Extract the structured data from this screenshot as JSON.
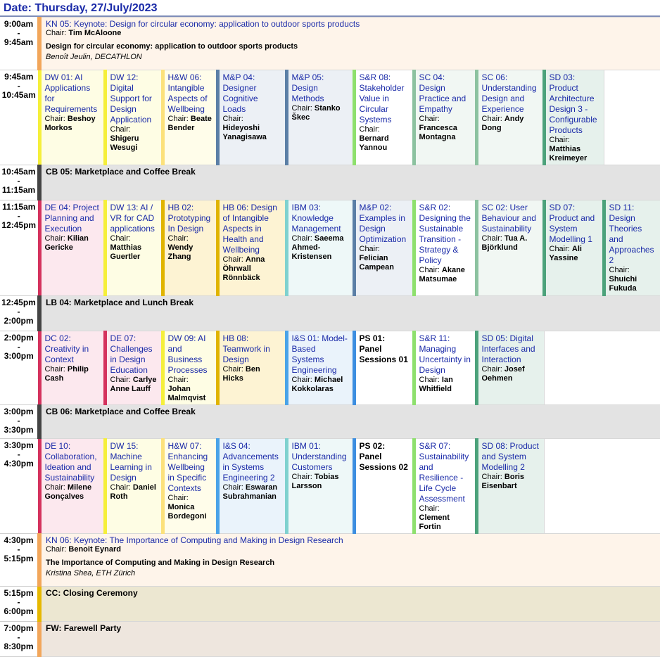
{
  "date": "Date: Thursday, 27/July/2023",
  "chair_prefix": "Chair:",
  "colors": {
    "yellow_border": "#f5ef3a",
    "pink_bg": "#fce8ee",
    "pink_border": "#d4325d",
    "keynote_bg": "#fef4ea",
    "keynote_border": "#f2a65a",
    "break_bg": "#e3e3e3",
    "break_border": "#444444",
    "closing_bg": "#ece7d1",
    "closing_border": "#e6b800",
    "farewell_bg": "#eee6de",
    "farewell_border": "#f2a65a"
  },
  "kn05": {
    "title": "KN 05: Keynote: Design for circular economy: application to outdoor sports products",
    "chair": "Tim McAloone",
    "talk": "Design for circular economy: application to outdoor sports products",
    "speaker": "Benoît Jeulin, DECATHLON",
    "time_start": "9:00am",
    "time_end": "9:45am"
  },
  "slot1": {
    "time_start": "9:45am",
    "time_end": "10:45am",
    "sessions": [
      {
        "title": "DW 01: AI Applications for Requirements",
        "chair": "Beshoy Morkos"
      },
      {
        "title": "DW 12: Digital Support for Design Application",
        "chair": "Shigeru Wesugi"
      },
      {
        "title": "H&W 06: Intangible Aspects of Wellbeing",
        "chair": "Beate Bender"
      },
      {
        "title": "M&P 04: Designer Cognitive Loads",
        "chair": "Hideyoshi Yanagisawa"
      },
      {
        "title": "M&P 05: Design Methods",
        "chair": "Stanko Škec"
      },
      {
        "title": "S&R 08: Stakeholder Value in Circular Systems",
        "chair": "Bernard Yannou"
      },
      {
        "title": "SC 04: Design Practice and Empathy",
        "chair": "Francesca Montagna"
      },
      {
        "title": "SC 06: Understanding Design and Experience",
        "chair": "Andy Dong"
      },
      {
        "title": "SD 03: Product Architecture Design 3 - Configurable Products",
        "chair": "Matthias Kreimeyer"
      }
    ]
  },
  "cb05": {
    "title": "CB 05: Marketplace and Coffee Break",
    "time_start": "10:45am",
    "time_end": "11:15am"
  },
  "slot2": {
    "time_start": "11:15am",
    "time_end": "12:45pm",
    "sessions": [
      {
        "title": "DE 04: Project Planning and Execution",
        "chair": "Kilian Gericke"
      },
      {
        "title": "DW 13: AI / VR for CAD applications",
        "chair": "Matthias Guertler"
      },
      {
        "title": "HB 02: Prototyping In Design",
        "chair": "Wendy Zhang"
      },
      {
        "title": "HB 06: Design of Intangible Aspects in Health and Wellbeing",
        "chair": "Anna Öhrwall Rönnbäck"
      },
      {
        "title": "IBM 03: Knowledge Management",
        "chair": "Saeema Ahmed-Kristensen"
      },
      {
        "title": "M&P 02: Examples in Design Optimization",
        "chair": "Felician Campean"
      },
      {
        "title": "S&R 02: Designing the Sustainable Transition - Strategy & Policy",
        "chair": "Akane Matsumae"
      },
      {
        "title": "SC 02: User Behaviour and Sustainability",
        "chair": "Tua A. Björklund"
      },
      {
        "title": "SD 07: Product and System Modelling 1",
        "chair": "Ali Yassine"
      },
      {
        "title": "SD 11: Design Theories and Approaches 2",
        "chair": "Shuichi Fukuda"
      }
    ]
  },
  "lb04": {
    "title": "LB 04: Marketplace and Lunch Break",
    "time_start": "12:45pm",
    "time_end": "2:00pm"
  },
  "slot3": {
    "time_start": "2:00pm",
    "time_end": "3:00pm",
    "sessions": [
      {
        "title": "DC 02: Creativity in Context",
        "chair": "Philip Cash"
      },
      {
        "title": "DE 07: Challenges in Design Education",
        "chair": "Carlye Anne Lauff"
      },
      {
        "title": "DW 09: AI and Business Processes",
        "chair": "Johan Malmqvist"
      },
      {
        "title": "HB 08: Teamwork in Design",
        "chair": "Ben Hicks"
      },
      {
        "title": "I&S 01: Model-Based Systems Engineering",
        "chair": "Michael Kokkolaras"
      },
      {
        "title": "PS 01: Panel Sessions 01",
        "chair": ""
      },
      {
        "title": "S&R 11: Managing Uncertainty in Design",
        "chair": "Ian Whitfield"
      },
      {
        "title": "SD 05: Digital Interfaces and Interaction",
        "chair": "Josef Oehmen"
      }
    ]
  },
  "cb06": {
    "title": "CB 06: Marketplace and Coffee Break",
    "time_start": "3:00pm",
    "time_end": "3:30pm"
  },
  "slot4": {
    "time_start": "3:30pm",
    "time_end": "4:30pm",
    "sessions": [
      {
        "title": "DE 10: Collaboration, Ideation and Sustainability",
        "chair": "Milene Gonçalves"
      },
      {
        "title": "DW 15: Machine Learning in Design",
        "chair": "Daniel Roth"
      },
      {
        "title": "H&W 07: Enhancing Wellbeing in Specific Contexts",
        "chair": "Monica Bordegoni"
      },
      {
        "title": "I&S 04: Advancements in Systems Engineering 2",
        "chair": "Eswaran Subrahmanian"
      },
      {
        "title": "IBM 01: Understanding Customers",
        "chair": "Tobias Larsson"
      },
      {
        "title": "PS 02: Panel Sessions 02",
        "chair": ""
      },
      {
        "title": "S&R 07: Sustainability and Resilience - Life Cycle Assessment",
        "chair": "Clement Fortin"
      },
      {
        "title": "SD 08: Product and System Modelling 2",
        "chair": "Boris Eisenbart"
      }
    ]
  },
  "kn06": {
    "title": "KN 06: Keynote: The Importance of Computing and Making in Design Research",
    "chair": "Benoit Eynard",
    "talk": "The Importance of Computing and Making in Design Research",
    "speaker": "Kristina Shea, ETH Zürich",
    "time_start": "4:30pm",
    "time_end": "5:15pm"
  },
  "cc": {
    "title": "CC: Closing Ceremony",
    "time_start": "5:15pm",
    "time_end": "6:00pm"
  },
  "fw": {
    "title": "FW: Farewell Party",
    "time_start": "7:00pm",
    "time_end": "8:30pm"
  }
}
